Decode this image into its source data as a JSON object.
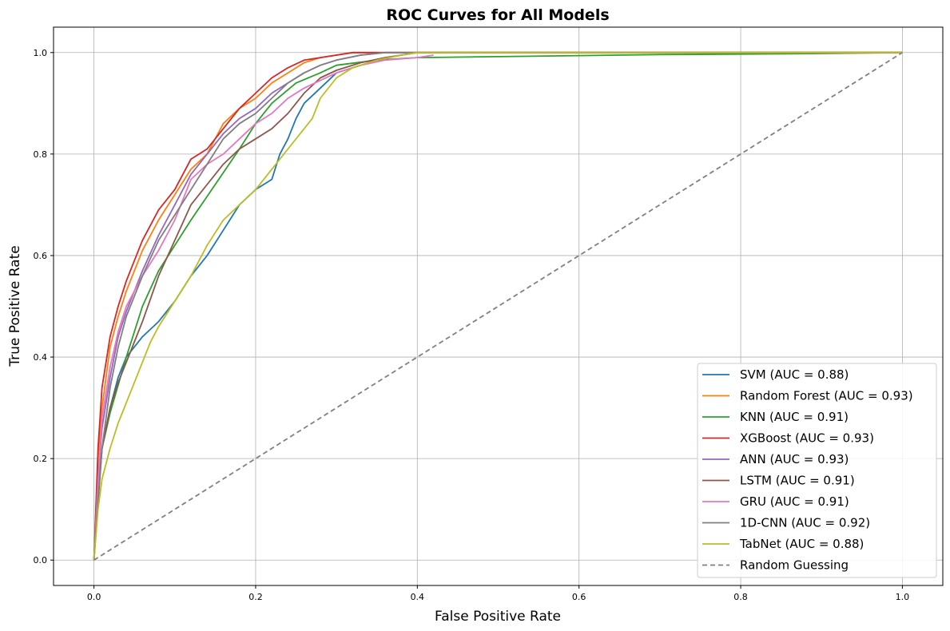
{
  "chart_data": {
    "type": "line",
    "title": "ROC Curves for All Models",
    "xlabel": "False Positive Rate",
    "ylabel": "True Positive Rate",
    "xlim": [
      -0.05,
      1.05
    ],
    "ylim": [
      -0.05,
      1.05
    ],
    "xticks": [
      0.0,
      0.2,
      0.4,
      0.6,
      0.8,
      1.0
    ],
    "yticks": [
      0.0,
      0.2,
      0.4,
      0.6,
      0.8,
      1.0
    ],
    "xtick_labels": [
      "0.0",
      "0.2",
      "0.4",
      "0.6",
      "0.8",
      "1.0"
    ],
    "ytick_labels": [
      "0.0",
      "0.2",
      "0.4",
      "0.6",
      "0.8",
      "1.0"
    ],
    "grid": true,
    "legend_position": "lower-right",
    "series": [
      {
        "name": "SVM (AUC = 0.88)",
        "color": "#1f77b4",
        "dashed": false,
        "x": [
          0,
          0.005,
          0.01,
          0.02,
          0.03,
          0.04,
          0.05,
          0.06,
          0.08,
          0.1,
          0.12,
          0.14,
          0.16,
          0.18,
          0.2,
          0.22,
          0.23,
          0.24,
          0.25,
          0.26,
          0.28,
          0.3,
          0.32,
          0.35,
          0.38,
          0.4,
          0.45,
          0.5,
          1.0
        ],
        "y": [
          0,
          0.15,
          0.22,
          0.3,
          0.36,
          0.4,
          0.42,
          0.44,
          0.47,
          0.51,
          0.56,
          0.6,
          0.65,
          0.7,
          0.73,
          0.75,
          0.8,
          0.83,
          0.87,
          0.9,
          0.93,
          0.96,
          0.97,
          0.985,
          0.995,
          1.0,
          1.0,
          1.0,
          1.0
        ]
      },
      {
        "name": "Random Forest (AUC = 0.93)",
        "color": "#ff7f0e",
        "dashed": false,
        "x": [
          0,
          0.005,
          0.01,
          0.02,
          0.03,
          0.04,
          0.05,
          0.06,
          0.08,
          0.1,
          0.12,
          0.14,
          0.16,
          0.18,
          0.2,
          0.22,
          0.24,
          0.26,
          0.28,
          0.3,
          0.32,
          0.35,
          0.4,
          0.5,
          1.0
        ],
        "y": [
          0,
          0.2,
          0.3,
          0.42,
          0.48,
          0.53,
          0.57,
          0.61,
          0.67,
          0.72,
          0.77,
          0.8,
          0.86,
          0.89,
          0.91,
          0.94,
          0.96,
          0.98,
          0.99,
          0.995,
          1.0,
          1.0,
          1.0,
          1.0,
          1.0
        ]
      },
      {
        "name": "KNN (AUC = 0.91)",
        "color": "#2ca02c",
        "dashed": false,
        "x": [
          0,
          0.01,
          0.02,
          0.04,
          0.06,
          0.08,
          0.1,
          0.12,
          0.15,
          0.18,
          0.2,
          0.22,
          0.25,
          0.28,
          0.3,
          0.35,
          0.4,
          0.5,
          0.6,
          0.7,
          0.8,
          0.9,
          1.0
        ],
        "y": [
          0,
          0.22,
          0.29,
          0.4,
          0.5,
          0.57,
          0.62,
          0.67,
          0.74,
          0.81,
          0.86,
          0.9,
          0.94,
          0.96,
          0.975,
          0.985,
          0.99,
          0.992,
          0.994,
          0.996,
          0.997,
          0.998,
          1.0
        ]
      },
      {
        "name": "XGBoost (AUC = 0.93)",
        "color": "#d62728",
        "dashed": false,
        "x": [
          0,
          0.005,
          0.01,
          0.02,
          0.03,
          0.04,
          0.05,
          0.06,
          0.08,
          0.1,
          0.12,
          0.14,
          0.16,
          0.18,
          0.2,
          0.22,
          0.24,
          0.26,
          0.28,
          0.3,
          0.32,
          0.35,
          0.4,
          0.5,
          1.0
        ],
        "y": [
          0,
          0.22,
          0.34,
          0.44,
          0.5,
          0.55,
          0.59,
          0.63,
          0.69,
          0.73,
          0.79,
          0.81,
          0.85,
          0.89,
          0.92,
          0.95,
          0.97,
          0.985,
          0.99,
          0.995,
          1.0,
          1.0,
          1.0,
          1.0,
          1.0
        ]
      },
      {
        "name": "ANN (AUC = 0.93)",
        "color": "#9467bd",
        "dashed": false,
        "x": [
          0,
          0.005,
          0.01,
          0.02,
          0.03,
          0.04,
          0.05,
          0.06,
          0.08,
          0.1,
          0.12,
          0.14,
          0.16,
          0.18,
          0.2,
          0.22,
          0.24,
          0.26,
          0.28,
          0.3,
          0.33,
          0.36,
          0.4,
          0.5,
          1.0
        ],
        "y": [
          0,
          0.16,
          0.26,
          0.36,
          0.44,
          0.49,
          0.53,
          0.57,
          0.64,
          0.7,
          0.76,
          0.8,
          0.84,
          0.87,
          0.89,
          0.92,
          0.94,
          0.96,
          0.975,
          0.985,
          0.995,
          1.0,
          1.0,
          1.0,
          1.0
        ]
      },
      {
        "name": "LSTM (AUC = 0.91)",
        "color": "#8c564b",
        "dashed": false,
        "x": [
          0,
          0.005,
          0.01,
          0.02,
          0.03,
          0.04,
          0.05,
          0.06,
          0.08,
          0.1,
          0.12,
          0.14,
          0.16,
          0.18,
          0.2,
          0.22,
          0.24,
          0.26,
          0.28,
          0.3,
          0.33,
          0.36,
          0.4,
          0.5,
          1.0
        ],
        "y": [
          0,
          0.12,
          0.22,
          0.3,
          0.35,
          0.39,
          0.43,
          0.47,
          0.56,
          0.63,
          0.7,
          0.74,
          0.78,
          0.81,
          0.83,
          0.85,
          0.88,
          0.92,
          0.95,
          0.965,
          0.98,
          0.99,
          1.0,
          1.0,
          1.0
        ]
      },
      {
        "name": "GRU (AUC = 0.91)",
        "color": "#e377c2",
        "dashed": false,
        "x": [
          0,
          0.005,
          0.01,
          0.02,
          0.03,
          0.04,
          0.05,
          0.06,
          0.08,
          0.1,
          0.12,
          0.14,
          0.16,
          0.18,
          0.2,
          0.22,
          0.24,
          0.26,
          0.28,
          0.3,
          0.33,
          0.36,
          0.4,
          0.42
        ],
        "y": [
          0,
          0.15,
          0.28,
          0.38,
          0.45,
          0.5,
          0.53,
          0.56,
          0.61,
          0.67,
          0.75,
          0.78,
          0.8,
          0.83,
          0.86,
          0.88,
          0.91,
          0.93,
          0.945,
          0.96,
          0.975,
          0.985,
          0.99,
          0.995
        ]
      },
      {
        "name": "1D-CNN (AUC = 0.92)",
        "color": "#7f7f7f",
        "dashed": false,
        "x": [
          0,
          0.005,
          0.01,
          0.02,
          0.03,
          0.04,
          0.05,
          0.06,
          0.08,
          0.1,
          0.12,
          0.14,
          0.16,
          0.18,
          0.2,
          0.22,
          0.24,
          0.26,
          0.28,
          0.3,
          0.33,
          0.36,
          0.4,
          0.46,
          1.0
        ],
        "y": [
          0,
          0.12,
          0.22,
          0.34,
          0.42,
          0.48,
          0.52,
          0.56,
          0.63,
          0.68,
          0.73,
          0.78,
          0.83,
          0.86,
          0.88,
          0.91,
          0.94,
          0.96,
          0.975,
          0.985,
          0.995,
          1.0,
          1.0,
          1.0,
          1.0
        ]
      },
      {
        "name": "TabNet (AUC = 0.88)",
        "color": "#bcbd22",
        "dashed": false,
        "x": [
          0,
          0.005,
          0.01,
          0.02,
          0.03,
          0.04,
          0.05,
          0.06,
          0.07,
          0.08,
          0.1,
          0.12,
          0.14,
          0.16,
          0.18,
          0.2,
          0.22,
          0.24,
          0.26,
          0.27,
          0.28,
          0.3,
          0.32,
          0.35,
          0.38,
          0.4,
          0.5,
          1.0
        ],
        "y": [
          0,
          0.1,
          0.16,
          0.22,
          0.27,
          0.31,
          0.35,
          0.39,
          0.43,
          0.46,
          0.51,
          0.56,
          0.62,
          0.67,
          0.7,
          0.73,
          0.77,
          0.81,
          0.85,
          0.87,
          0.91,
          0.95,
          0.97,
          0.985,
          0.995,
          1.0,
          1.0,
          1.0
        ]
      },
      {
        "name": "Random Guessing",
        "color": "#808080",
        "dashed": true,
        "x": [
          0,
          1
        ],
        "y": [
          0,
          1
        ]
      }
    ]
  }
}
